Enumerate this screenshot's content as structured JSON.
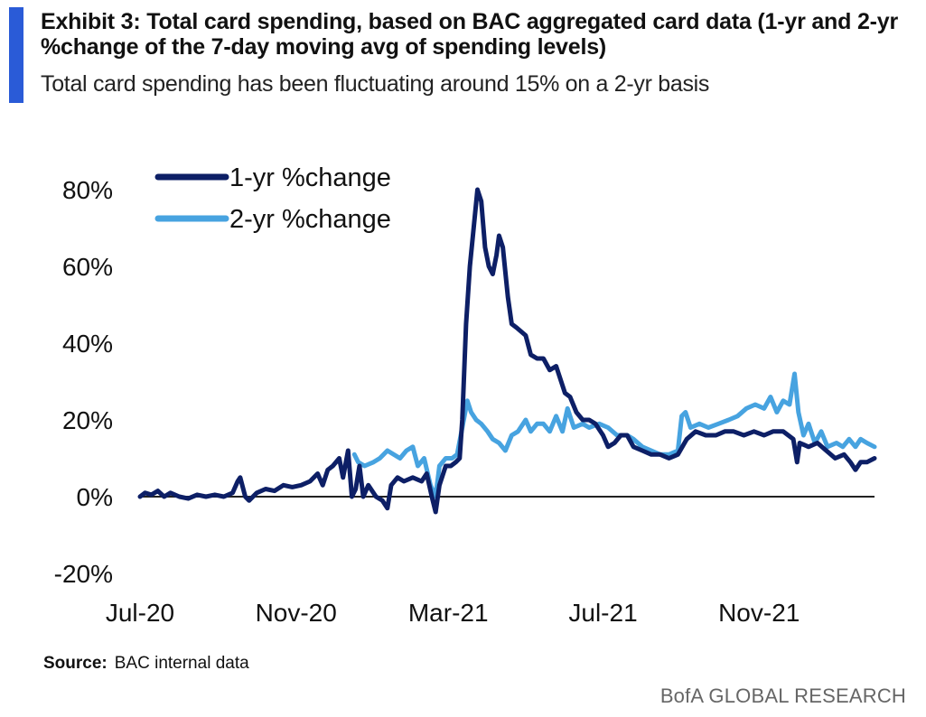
{
  "header": {
    "title": "Exhibit 3: Total card spending, based on BAC aggregated card data (1-yr and 2-yr %change of the 7-day moving avg of spending levels)",
    "subtitle": "Total card spending has been fluctuating around 15% on a 2-yr basis"
  },
  "footer": {
    "source_label": "Source:",
    "source_text": "BAC internal data",
    "brand": "BofA GLOBAL RESEARCH"
  },
  "colors": {
    "one_yr": "#0d1f66",
    "two_yr": "#47a3e0",
    "accent": "#2a5bd7",
    "zero_line": "#222222"
  },
  "chart_data": {
    "type": "line",
    "title": "",
    "xlabel": "",
    "ylabel": "",
    "ylim": [
      -20,
      80
    ],
    "y_ticks": [
      {
        "value": -20,
        "label": "-20%"
      },
      {
        "value": 0,
        "label": "0%"
      },
      {
        "value": 20,
        "label": "20%"
      },
      {
        "value": 40,
        "label": "40%"
      },
      {
        "value": 60,
        "label": "60%"
      },
      {
        "value": 80,
        "label": "80%"
      }
    ],
    "xlim": [
      "2020-07-01",
      "2022-01-31"
    ],
    "x_ticks": [
      {
        "date": "2020-07-01",
        "label": "Jul-20"
      },
      {
        "date": "2020-11-01",
        "label": "Nov-20"
      },
      {
        "date": "2021-03-01",
        "label": "Mar-21"
      },
      {
        "date": "2021-07-01",
        "label": "Jul-21"
      },
      {
        "date": "2021-11-01",
        "label": "Nov-21"
      }
    ],
    "grid": false,
    "legend_position": "top-left",
    "series": [
      {
        "name": "1-yr %change",
        "points": [
          [
            "2020-07-01",
            0
          ],
          [
            "2020-07-05",
            1
          ],
          [
            "2020-07-10",
            0.5
          ],
          [
            "2020-07-15",
            1.5
          ],
          [
            "2020-07-20",
            0
          ],
          [
            "2020-07-25",
            1
          ],
          [
            "2020-08-01",
            0
          ],
          [
            "2020-08-08",
            -0.5
          ],
          [
            "2020-08-15",
            0.5
          ],
          [
            "2020-08-22",
            0
          ],
          [
            "2020-08-29",
            0.5
          ],
          [
            "2020-09-05",
            0
          ],
          [
            "2020-09-12",
            1
          ],
          [
            "2020-09-16",
            4
          ],
          [
            "2020-09-18",
            5
          ],
          [
            "2020-09-22",
            0
          ],
          [
            "2020-09-25",
            -1
          ],
          [
            "2020-10-01",
            1
          ],
          [
            "2020-10-08",
            2
          ],
          [
            "2020-10-15",
            1.5
          ],
          [
            "2020-10-22",
            3
          ],
          [
            "2020-10-29",
            2.5
          ],
          [
            "2020-11-05",
            3
          ],
          [
            "2020-11-12",
            4
          ],
          [
            "2020-11-18",
            6
          ],
          [
            "2020-11-22",
            3
          ],
          [
            "2020-11-26",
            7
          ],
          [
            "2020-11-30",
            8
          ],
          [
            "2020-12-05",
            10
          ],
          [
            "2020-12-08",
            5
          ],
          [
            "2020-12-12",
            12
          ],
          [
            "2020-12-15",
            0
          ],
          [
            "2020-12-18",
            2
          ],
          [
            "2020-12-21",
            8
          ],
          [
            "2020-12-24",
            0
          ],
          [
            "2020-12-28",
            3
          ],
          [
            "2021-01-03",
            0
          ],
          [
            "2021-01-08",
            -1
          ],
          [
            "2021-01-12",
            -3
          ],
          [
            "2021-01-15",
            3
          ],
          [
            "2021-01-20",
            5
          ],
          [
            "2021-01-25",
            4
          ],
          [
            "2021-02-01",
            5
          ],
          [
            "2021-02-08",
            4
          ],
          [
            "2021-02-12",
            6
          ],
          [
            "2021-02-16",
            0
          ],
          [
            "2021-02-19",
            -4
          ],
          [
            "2021-02-22",
            3
          ],
          [
            "2021-02-27",
            8
          ],
          [
            "2021-03-03",
            8
          ],
          [
            "2021-03-07",
            9
          ],
          [
            "2021-03-10",
            10
          ],
          [
            "2021-03-12",
            20
          ],
          [
            "2021-03-15",
            45
          ],
          [
            "2021-03-18",
            60
          ],
          [
            "2021-03-21",
            70
          ],
          [
            "2021-03-24",
            80
          ],
          [
            "2021-03-27",
            77
          ],
          [
            "2021-03-30",
            65
          ],
          [
            "2021-04-02",
            60
          ],
          [
            "2021-04-05",
            58
          ],
          [
            "2021-04-08",
            63
          ],
          [
            "2021-04-10",
            68
          ],
          [
            "2021-04-13",
            65
          ],
          [
            "2021-04-17",
            52
          ],
          [
            "2021-04-20",
            45
          ],
          [
            "2021-04-24",
            44
          ],
          [
            "2021-05-01",
            42
          ],
          [
            "2021-05-05",
            37
          ],
          [
            "2021-05-10",
            36
          ],
          [
            "2021-05-15",
            36
          ],
          [
            "2021-05-20",
            33
          ],
          [
            "2021-05-25",
            34
          ],
          [
            "2021-06-01",
            27
          ],
          [
            "2021-06-05",
            26
          ],
          [
            "2021-06-10",
            22
          ],
          [
            "2021-06-15",
            20
          ],
          [
            "2021-06-20",
            20
          ],
          [
            "2021-06-25",
            19
          ],
          [
            "2021-07-01",
            16
          ],
          [
            "2021-07-05",
            13
          ],
          [
            "2021-07-10",
            14
          ],
          [
            "2021-07-15",
            16
          ],
          [
            "2021-07-20",
            16
          ],
          [
            "2021-07-25",
            13
          ],
          [
            "2021-08-01",
            12
          ],
          [
            "2021-08-08",
            11
          ],
          [
            "2021-08-15",
            11
          ],
          [
            "2021-08-22",
            10
          ],
          [
            "2021-08-29",
            11
          ],
          [
            "2021-09-05",
            15
          ],
          [
            "2021-09-12",
            17
          ],
          [
            "2021-09-20",
            16
          ],
          [
            "2021-09-28",
            16
          ],
          [
            "2021-10-05",
            17
          ],
          [
            "2021-10-12",
            17
          ],
          [
            "2021-10-20",
            16
          ],
          [
            "2021-10-28",
            17
          ],
          [
            "2021-11-05",
            16
          ],
          [
            "2021-11-12",
            17
          ],
          [
            "2021-11-20",
            17
          ],
          [
            "2021-11-28",
            15
          ],
          [
            "2021-12-01",
            9
          ],
          [
            "2021-12-03",
            14
          ],
          [
            "2021-12-10",
            13
          ],
          [
            "2021-12-17",
            14
          ],
          [
            "2021-12-24",
            12
          ],
          [
            "2021-12-31",
            10
          ],
          [
            "2022-01-07",
            11
          ],
          [
            "2022-01-12",
            9
          ],
          [
            "2022-01-16",
            7
          ],
          [
            "2022-01-20",
            9
          ],
          [
            "2022-01-25",
            9
          ],
          [
            "2022-01-31",
            10
          ]
        ]
      },
      {
        "name": "2-yr %change",
        "points": [
          [
            "2020-12-17",
            11
          ],
          [
            "2020-12-20",
            9
          ],
          [
            "2020-12-25",
            8
          ],
          [
            "2021-01-01",
            9
          ],
          [
            "2021-01-06",
            10
          ],
          [
            "2021-01-12",
            12
          ],
          [
            "2021-01-17",
            11
          ],
          [
            "2021-01-22",
            10
          ],
          [
            "2021-01-27",
            12
          ],
          [
            "2021-02-01",
            13
          ],
          [
            "2021-02-05",
            8
          ],
          [
            "2021-02-10",
            10
          ],
          [
            "2021-02-15",
            3
          ],
          [
            "2021-02-19",
            0
          ],
          [
            "2021-02-22",
            8
          ],
          [
            "2021-02-27",
            10
          ],
          [
            "2021-03-04",
            10
          ],
          [
            "2021-03-08",
            11
          ],
          [
            "2021-03-12",
            18
          ],
          [
            "2021-03-16",
            25
          ],
          [
            "2021-03-19",
            22
          ],
          [
            "2021-03-23",
            20
          ],
          [
            "2021-03-27",
            19
          ],
          [
            "2021-04-01",
            17
          ],
          [
            "2021-04-05",
            15
          ],
          [
            "2021-04-10",
            14
          ],
          [
            "2021-04-15",
            12
          ],
          [
            "2021-04-20",
            16
          ],
          [
            "2021-04-25",
            17
          ],
          [
            "2021-05-01",
            20
          ],
          [
            "2021-05-05",
            17
          ],
          [
            "2021-05-10",
            19
          ],
          [
            "2021-05-15",
            19
          ],
          [
            "2021-05-20",
            17
          ],
          [
            "2021-05-25",
            21
          ],
          [
            "2021-05-30",
            17
          ],
          [
            "2021-06-03",
            23
          ],
          [
            "2021-06-08",
            18
          ],
          [
            "2021-06-15",
            19
          ],
          [
            "2021-06-20",
            18
          ],
          [
            "2021-06-28",
            19
          ],
          [
            "2021-07-05",
            18
          ],
          [
            "2021-07-12",
            16
          ],
          [
            "2021-07-20",
            16
          ],
          [
            "2021-07-25",
            15
          ],
          [
            "2021-08-01",
            13
          ],
          [
            "2021-08-08",
            12
          ],
          [
            "2021-08-15",
            11
          ],
          [
            "2021-08-22",
            11
          ],
          [
            "2021-08-29",
            12
          ],
          [
            "2021-09-01",
            21
          ],
          [
            "2021-09-04",
            22
          ],
          [
            "2021-09-08",
            18
          ],
          [
            "2021-09-15",
            19
          ],
          [
            "2021-09-22",
            18
          ],
          [
            "2021-09-30",
            19
          ],
          [
            "2021-10-08",
            20
          ],
          [
            "2021-10-15",
            21
          ],
          [
            "2021-10-22",
            23
          ],
          [
            "2021-10-29",
            24
          ],
          [
            "2021-11-05",
            23
          ],
          [
            "2021-11-10",
            26
          ],
          [
            "2021-11-15",
            22
          ],
          [
            "2021-11-20",
            25
          ],
          [
            "2021-11-25",
            24
          ],
          [
            "2021-11-29",
            32
          ],
          [
            "2021-12-02",
            22
          ],
          [
            "2021-12-06",
            16
          ],
          [
            "2021-12-10",
            19
          ],
          [
            "2021-12-15",
            14
          ],
          [
            "2021-12-20",
            17
          ],
          [
            "2021-12-25",
            13
          ],
          [
            "2022-01-01",
            14
          ],
          [
            "2022-01-06",
            13
          ],
          [
            "2022-01-11",
            15
          ],
          [
            "2022-01-16",
            13
          ],
          [
            "2022-01-20",
            15
          ],
          [
            "2022-01-25",
            14
          ],
          [
            "2022-01-31",
            13
          ]
        ]
      }
    ]
  }
}
